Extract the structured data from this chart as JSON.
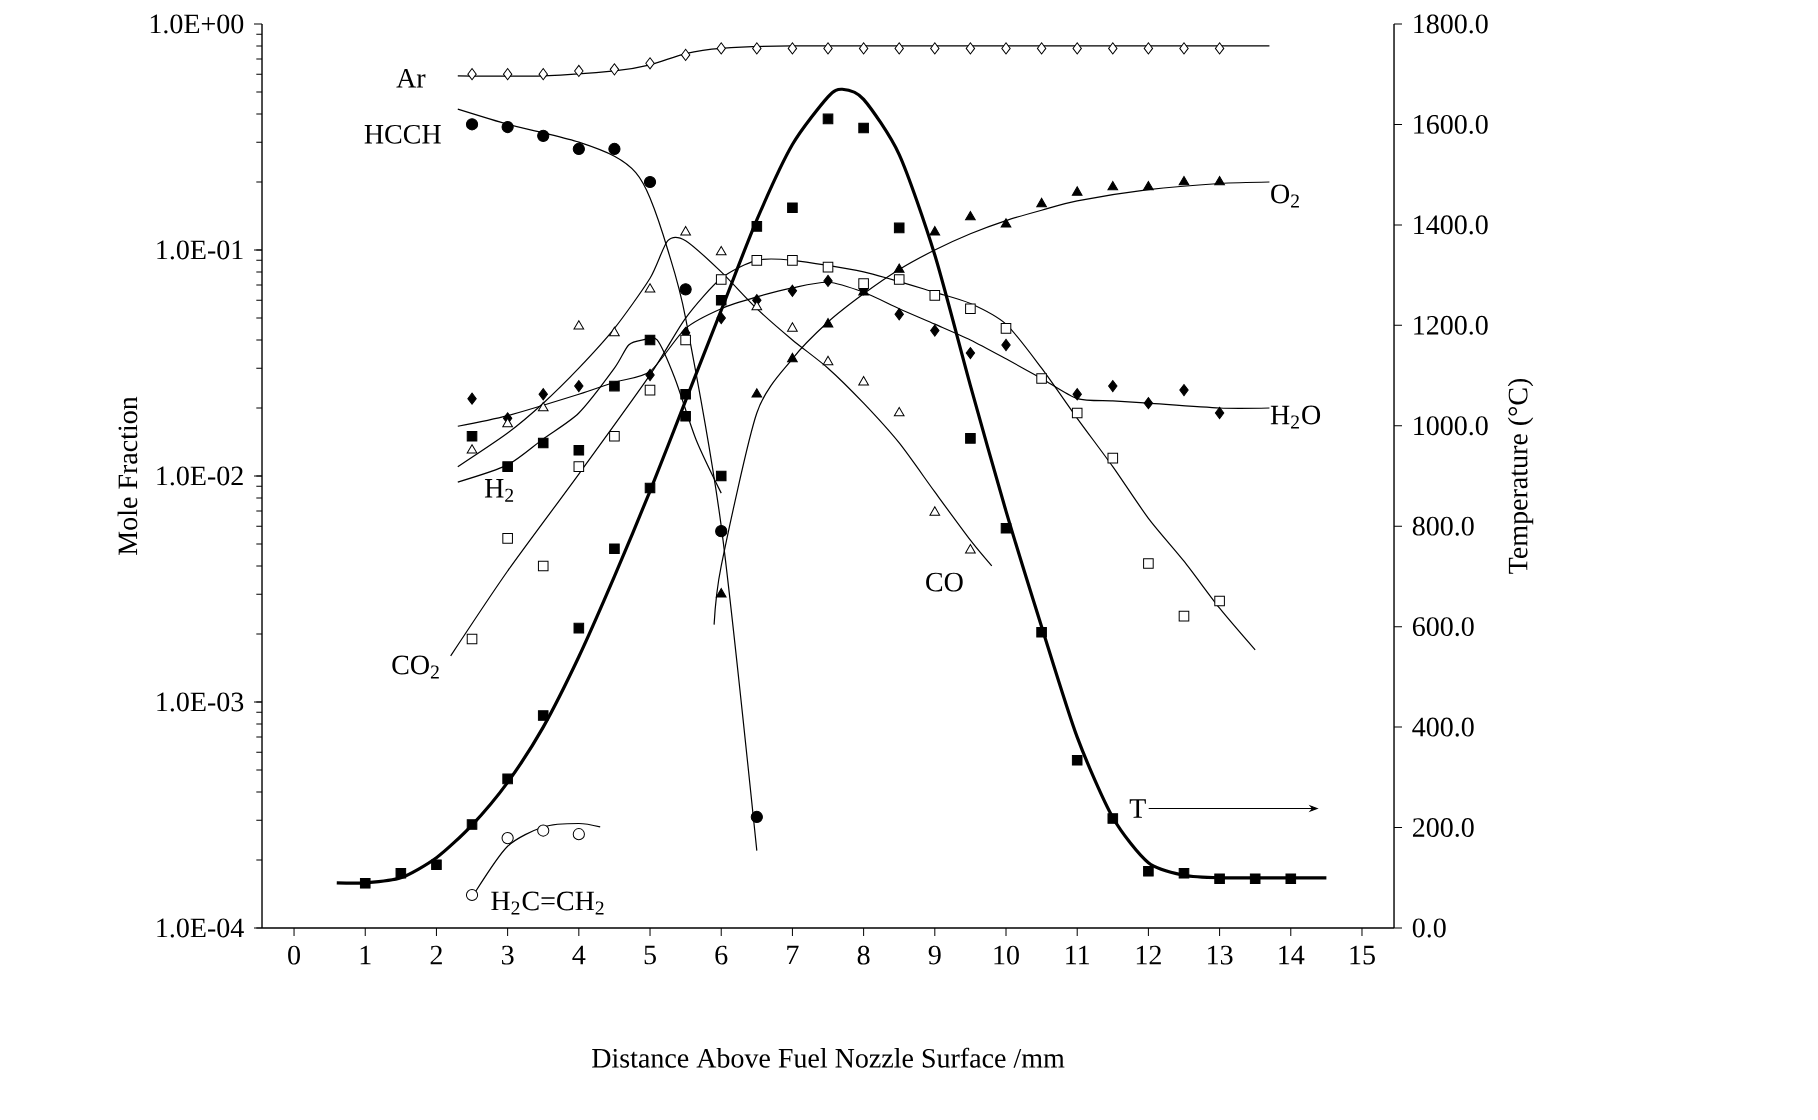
{
  "chart_data": {
    "type": "scatter",
    "xlabel": "Distance Above Fuel Nozzle Surface /mm",
    "ylabel": "Mole Fraction",
    "y2label": "Temperature (°C)",
    "log": "y",
    "grid": false,
    "xlim": [
      -0.45,
      15.45
    ],
    "xticks": [
      0,
      1,
      2,
      3,
      4,
      5,
      6,
      7,
      8,
      9,
      10,
      11,
      12,
      13,
      14,
      15
    ],
    "ylim": [
      0.0001,
      1
    ],
    "yticks": [
      {
        "value": 0.0001,
        "label": "1.0E-04"
      },
      {
        "value": 0.001,
        "label": "1.0E-03"
      },
      {
        "value": 0.01,
        "label": "1.0E-02"
      },
      {
        "value": 0.1,
        "label": "1.0E-01"
      },
      {
        "value": 1,
        "label": "1.0E+00"
      }
    ],
    "y2lim": [
      0,
      1800
    ],
    "y2ticks": [
      {
        "value": 0,
        "label": "0.0"
      },
      {
        "value": 200,
        "label": "200.0"
      },
      {
        "value": 400,
        "label": "400.0"
      },
      {
        "value": 600,
        "label": "600.0"
      },
      {
        "value": 800,
        "label": "800.0"
      },
      {
        "value": 1000,
        "label": "1000.0"
      },
      {
        "value": 1200,
        "label": "1200.0"
      },
      {
        "value": 1400,
        "label": "1400.0"
      },
      {
        "value": 1600,
        "label": "1600.0"
      },
      {
        "value": 1800,
        "label": "1800.0"
      }
    ],
    "series": [
      {
        "type": "line",
        "color": "#000000",
        "x": [
          2.3,
          3.5,
          4.5,
          5,
          5.5,
          6,
          7,
          10,
          13.7
        ],
        "values": [
          0.59,
          0.59,
          0.62,
          0.66,
          0.74,
          0.78,
          0.8,
          0.8,
          0.8
        ]
      },
      {
        "name": "Ar",
        "marker": "diamond",
        "color": "#ffffff",
        "x": [
          2.5,
          3,
          3.5,
          4,
          4.5,
          5,
          5.5,
          6,
          6.5,
          7,
          7.5,
          8,
          8.5,
          9,
          9.5,
          10,
          10.5,
          11,
          11.5,
          12,
          12.5,
          13
        ],
        "values": [
          0.6,
          0.6,
          0.6,
          0.62,
          0.63,
          0.67,
          0.73,
          0.78,
          0.78,
          0.78,
          0.78,
          0.78,
          0.78,
          0.78,
          0.78,
          0.78,
          0.78,
          0.78,
          0.78,
          0.78,
          0.78,
          0.78
        ]
      },
      {
        "type": "line",
        "color": "#000000",
        "x": [
          2.3,
          3,
          3.5,
          4,
          4.5,
          4.8,
          5,
          5.25,
          5.5,
          6,
          6.5
        ],
        "values": [
          0.42,
          0.36,
          0.33,
          0.3,
          0.26,
          0.22,
          0.17,
          0.1,
          0.05,
          0.006,
          0.00022
        ]
      },
      {
        "name": "HCCH",
        "marker": "circle",
        "color": "#000000",
        "x": [
          2.5,
          3,
          3.5,
          4,
          4.5,
          5,
          5.5,
          6,
          6.5
        ],
        "values": [
          0.36,
          0.35,
          0.32,
          0.28,
          0.28,
          0.2,
          0.067,
          0.0057,
          0.00031
        ]
      },
      {
        "type": "line",
        "color": "#000000",
        "x": [
          5.9,
          6,
          6.5,
          7,
          7.5,
          8,
          8.5,
          9,
          9.5,
          10,
          10.5,
          11,
          12,
          13,
          13.7
        ],
        "values": [
          0.0022,
          0.004,
          0.019,
          0.033,
          0.048,
          0.064,
          0.082,
          0.1,
          0.118,
          0.135,
          0.15,
          0.165,
          0.185,
          0.197,
          0.2
        ]
      },
      {
        "name": "O$_{2}$",
        "marker": "triangle",
        "color": "#000000",
        "x": [
          6,
          6.5,
          7,
          7.5,
          8,
          8.5,
          9,
          9.5,
          10,
          10.5,
          11,
          11.5,
          12,
          12.5,
          13
        ],
        "values": [
          0.003,
          0.023,
          0.033,
          0.047,
          0.065,
          0.082,
          0.12,
          0.14,
          0.13,
          0.16,
          0.18,
          0.19,
          0.19,
          0.2,
          0.2
        ]
      },
      {
        "type": "line",
        "color": "#000000",
        "x": [
          2.3,
          3,
          4,
          4.5,
          5,
          5.5,
          6,
          6.5,
          7,
          7.5,
          8,
          8.5,
          9,
          9.5,
          10,
          10.5,
          11,
          11.5,
          12,
          13,
          13.7
        ],
        "values": [
          0.0166,
          0.0185,
          0.023,
          0.026,
          0.029,
          0.045,
          0.055,
          0.062,
          0.068,
          0.072,
          0.065,
          0.055,
          0.047,
          0.04,
          0.033,
          0.027,
          0.022,
          0.0215,
          0.021,
          0.02,
          0.02
        ]
      },
      {
        "name": "H$_{2}$O",
        "marker": "diamond",
        "color": "#000000",
        "x": [
          2.5,
          3,
          3.5,
          4,
          5,
          5.5,
          6,
          6.5,
          7,
          7.5,
          8,
          8.5,
          9,
          9.5,
          10,
          11,
          11.5,
          12,
          12.5,
          13
        ],
        "values": [
          0.022,
          0.018,
          0.023,
          0.025,
          0.028,
          0.043,
          0.05,
          0.06,
          0.066,
          0.073,
          0.067,
          0.052,
          0.044,
          0.035,
          0.038,
          0.023,
          0.025,
          0.021,
          0.024,
          0.019
        ]
      },
      {
        "type": "line",
        "color": "#000000",
        "x": [
          2.3,
          3,
          3.5,
          4,
          4.5,
          4.7,
          4.9,
          5.1,
          5.35,
          5.65,
          6
        ],
        "values": [
          0.0094,
          0.0112,
          0.0146,
          0.019,
          0.03,
          0.038,
          0.04,
          0.04,
          0.027,
          0.0144,
          0.0084
        ]
      },
      {
        "name": "H$_{2}$",
        "marker": "square",
        "color": "#000000",
        "x": [
          2.5,
          3,
          3.5,
          4,
          4.5,
          5,
          5.5,
          6
        ],
        "values": [
          0.015,
          0.011,
          0.014,
          0.013,
          0.025,
          0.04,
          0.023,
          0.01
        ]
      },
      {
        "type": "line",
        "color": "#000000",
        "x": [
          2.3,
          3,
          3.5,
          4,
          4.5,
          5,
          5.25,
          5.5,
          6,
          6.5,
          7,
          7.5,
          8,
          8.5,
          9,
          9.5,
          9.8
        ],
        "values": [
          0.011,
          0.0155,
          0.021,
          0.03,
          0.045,
          0.075,
          0.11,
          0.11,
          0.08,
          0.055,
          0.04,
          0.03,
          0.021,
          0.014,
          0.0085,
          0.0052,
          0.004
        ]
      },
      {
        "name": "CO",
        "marker": "triangle",
        "color": "#ffffff",
        "x": [
          2.5,
          3,
          3.5,
          4,
          4.5,
          5,
          5.5,
          6,
          6.5,
          7,
          7.5,
          8,
          8.5,
          9,
          9.5
        ],
        "values": [
          0.013,
          0.017,
          0.02,
          0.046,
          0.043,
          0.067,
          0.12,
          0.098,
          0.056,
          0.045,
          0.032,
          0.026,
          0.019,
          0.0069,
          0.0047
        ]
      },
      {
        "type": "line",
        "color": "#000000",
        "x": [
          2.2,
          3,
          4,
          5,
          5.5,
          6,
          6.5,
          7,
          8,
          9,
          9.5,
          10,
          10.5,
          11,
          11.5,
          12,
          12.5,
          13,
          13.5
        ],
        "values": [
          0.0016,
          0.0038,
          0.0102,
          0.028,
          0.05,
          0.075,
          0.09,
          0.09,
          0.08,
          0.065,
          0.058,
          0.047,
          0.03,
          0.018,
          0.011,
          0.0065,
          0.0042,
          0.0026,
          0.0017
        ]
      },
      {
        "name": "CO$_{2}$",
        "marker": "square",
        "color": "#ffffff",
        "x": [
          2.5,
          3,
          3.5,
          4,
          4.5,
          5,
          5.5,
          6,
          6.5,
          7,
          7.5,
          8,
          8.5,
          9,
          9.5,
          10,
          10.5,
          11,
          11.5,
          12,
          12.5,
          13
        ],
        "values": [
          0.0019,
          0.0053,
          0.004,
          0.011,
          0.015,
          0.024,
          0.04,
          0.074,
          0.09,
          0.09,
          0.084,
          0.071,
          0.074,
          0.063,
          0.055,
          0.045,
          0.027,
          0.019,
          0.012,
          0.0041,
          0.0024,
          0.0028
        ]
      },
      {
        "type": "line",
        "color": "#000000",
        "x": [
          2.55,
          3,
          3.5,
          4,
          4.3
        ],
        "values": [
          0.000145,
          0.00023,
          0.00028,
          0.00029,
          0.00028
        ]
      },
      {
        "name": "H$_{2}$C=CH$_{2}$",
        "marker": "circle",
        "color": "#ffffff",
        "x": [
          2.5,
          3,
          3.5,
          4
        ],
        "values": [
          0.00014,
          0.00025,
          0.00027,
          0.00026
        ]
      },
      {
        "type": "line",
        "axis": "y2",
        "color": "#000000",
        "x": [
          0.6,
          1,
          1.5,
          2,
          2.5,
          3,
          3.5,
          4,
          4.5,
          5,
          5.5,
          6,
          6.5,
          7,
          7.5,
          7.7,
          8,
          8.5,
          9,
          9.5,
          10,
          10.5,
          11,
          11.5,
          12,
          12.5,
          13,
          14,
          14.5
        ],
        "values": [
          90,
          90,
          100,
          140,
          205,
          290,
          400,
          540,
          700,
          870,
          1050,
          1230,
          1410,
          1560,
          1655,
          1670,
          1650,
          1540,
          1340,
          1080,
          830,
          600,
          380,
          220,
          130,
          105,
          100,
          100,
          100
        ]
      },
      {
        "name": "T",
        "axis": "y2",
        "marker": "square",
        "color": "#000000",
        "x": [
          1,
          1.5,
          2,
          2.5,
          3,
          3.5,
          4,
          4.5,
          5,
          5.5,
          6,
          6.5,
          7,
          7.5,
          8,
          8.5,
          9,
          9.5,
          10,
          10.5,
          11,
          11.5,
          12,
          12.5,
          13,
          13.5,
          14
        ],
        "values": [
          89,
          109,
          126,
          206,
          297,
          423,
          597,
          755,
          876,
          1019,
          1250,
          1397,
          1434,
          1611,
          1593,
          1394,
          null,
          975,
          796,
          589,
          334,
          218,
          113,
          109,
          98,
          98,
          98
        ]
      }
    ]
  }
}
